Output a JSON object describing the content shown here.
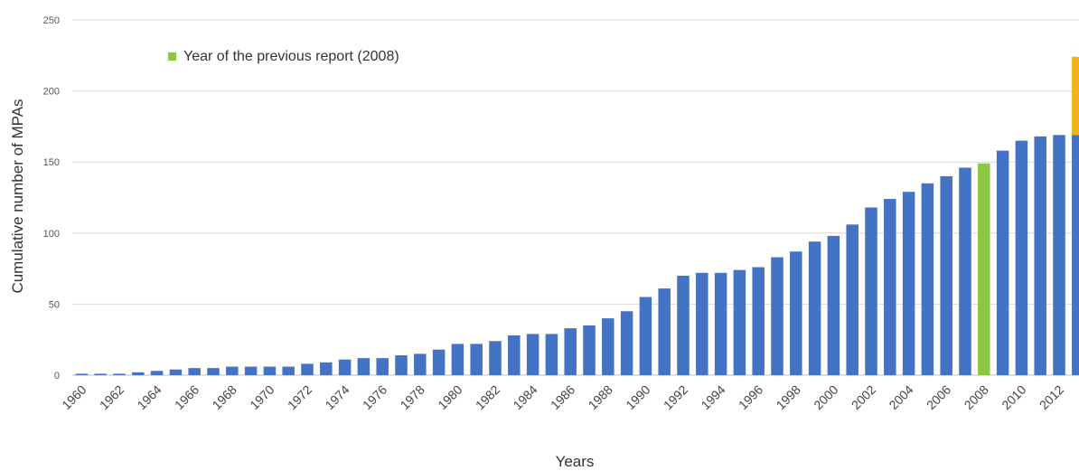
{
  "chart_data": {
    "type": "bar",
    "xlabel": "Years",
    "ylabel": "Cumulative number of MPAs",
    "ylim": [
      0,
      250
    ],
    "yticks": [
      0,
      50,
      100,
      150,
      200,
      250
    ],
    "grid": true,
    "legend": [
      {
        "label": "Year of the previous report (2008)",
        "color": "#8dc63f"
      }
    ],
    "legend_position": "top-left",
    "years": [
      1960,
      1961,
      1962,
      1963,
      1964,
      1965,
      1966,
      1967,
      1968,
      1969,
      1970,
      1971,
      1972,
      1973,
      1974,
      1975,
      1976,
      1977,
      1978,
      1979,
      1980,
      1981,
      1982,
      1983,
      1984,
      1985,
      1986,
      1987,
      1988,
      1989,
      1990,
      1991,
      1992,
      1993,
      1994,
      1995,
      1996,
      1997,
      1998,
      1999,
      2000,
      2001,
      2002,
      2003,
      2004,
      2005,
      2006,
      2007,
      2008,
      2009,
      2010,
      2011,
      2012,
      2013
    ],
    "tick_labels": [
      "1960",
      "1962",
      "1964",
      "1966",
      "1968",
      "1970",
      "1972",
      "1974",
      "1976",
      "1978",
      "1980",
      "1982",
      "1984",
      "1986",
      "1988",
      "1990",
      "1992",
      "1994",
      "1996",
      "1998",
      "2000",
      "2002",
      "2004",
      "2006",
      "2008",
      "2010",
      "2012"
    ],
    "values": [
      1,
      1,
      1,
      2,
      3,
      4,
      5,
      5,
      6,
      6,
      6,
      6,
      8,
      9,
      11,
      12,
      12,
      14,
      15,
      18,
      22,
      22,
      24,
      28,
      29,
      29,
      33,
      35,
      40,
      45,
      55,
      61,
      70,
      72,
      72,
      74,
      76,
      83,
      87,
      94,
      98,
      106,
      118,
      124,
      129,
      135,
      140,
      146,
      149,
      158,
      165,
      168,
      169,
      169
    ],
    "highlight_year": 2008,
    "extra_segment": {
      "year": 2013,
      "base": 169,
      "top": 224,
      "color": "#f2b21b"
    },
    "colors": {
      "bar": "#4472c4",
      "highlight": "#8dc63f",
      "extra": "#f2b21b",
      "grid": "#d9d9d9",
      "axis": "#bfbfbf"
    }
  }
}
